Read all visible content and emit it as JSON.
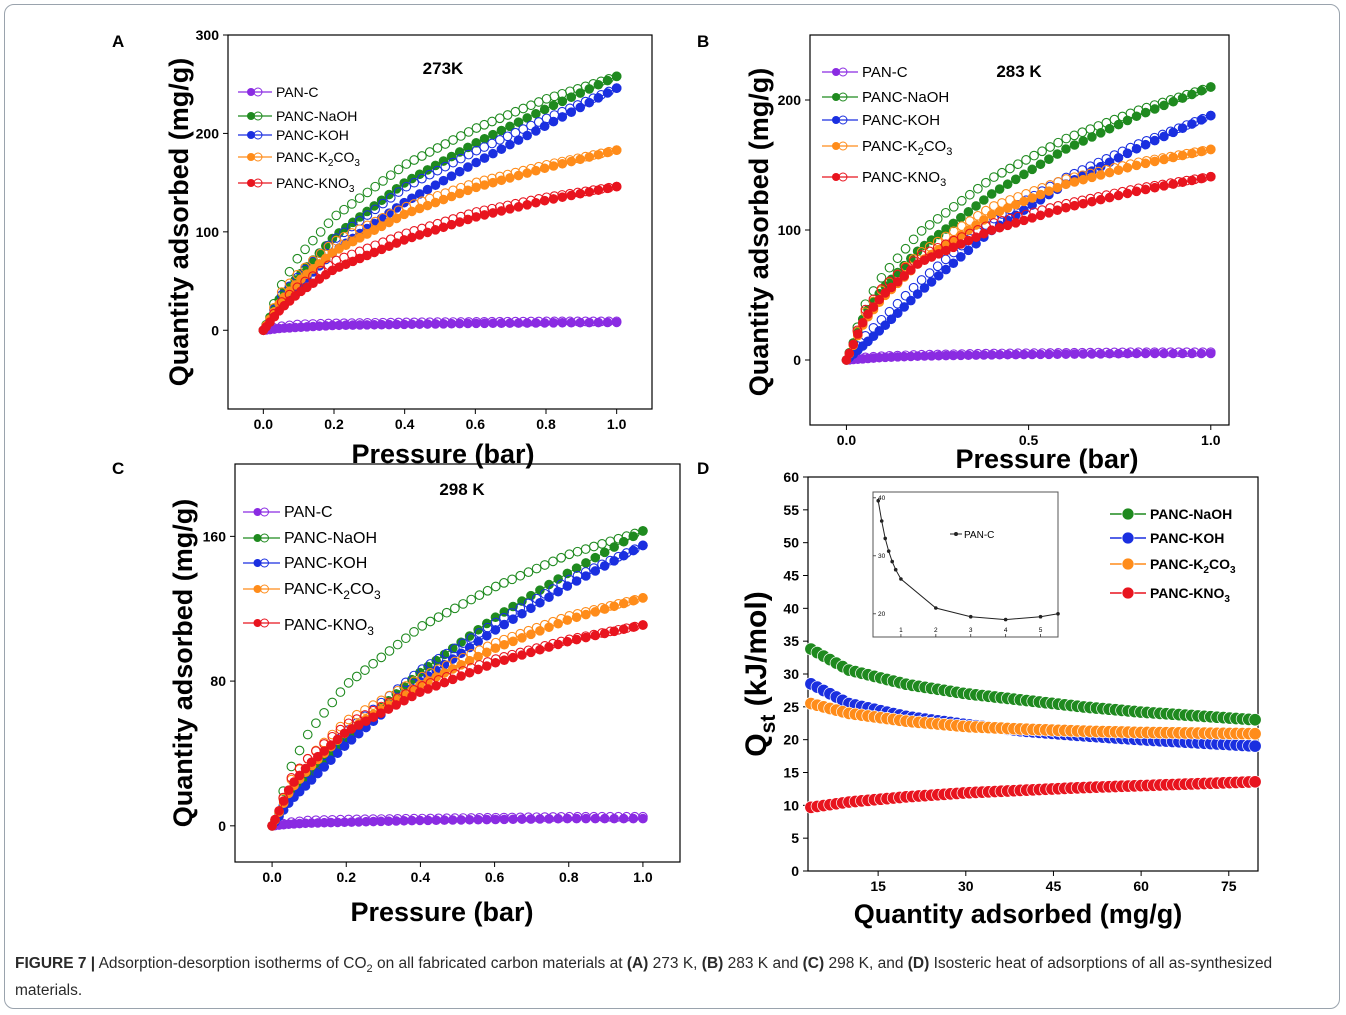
{
  "panels": [
    {
      "letter": "A",
      "temperature": "273K",
      "xlabel": "Pressure (bar)",
      "ylabel": "Quantity adsorbed (mg/g)"
    },
    {
      "letter": "B",
      "temperature": "283 K",
      "xlabel": "Pressure (bar)",
      "ylabel": "Quantity adsorbed (mg/g)"
    },
    {
      "letter": "C",
      "temperature": "298 K",
      "xlabel": "Pressure (bar)",
      "ylabel": "Quantity adsorbed (mg/g)"
    },
    {
      "letter": "D",
      "temperature": "",
      "xlabel": "Quantity adsorbed (mg/g)",
      "ylabel_main": "Q",
      "ylabel_sub": "st",
      "ylabel_rest": " (kJ/mol)"
    }
  ],
  "legend": {
    "pan_c": "PAN-C",
    "naoh": "PANC-NaOH",
    "koh": "PANC-KOH",
    "k2co3_a": "PANC-K",
    "k2co3_b": "2",
    "k2co3_c": "CO",
    "k2co3_d": "3",
    "kno3_a": "PANC-KNO",
    "kno3_b": "3"
  },
  "inset_legend": "PAN-C",
  "colors": {
    "pan_c": "#8a2be2",
    "naoh": "#1f8a1f",
    "koh": "#1a2fe0",
    "k2co3": "#ff8c1a",
    "kno3": "#e8141e",
    "inset": "#222222"
  },
  "caption": {
    "fig": "FIGURE 7 |",
    "t1": " Adsorption-desorption isotherms of CO",
    "sub2": "2",
    "t2": " on all fabricated carbon materials at ",
    "a": "(A)",
    "t3": " 273 K, ",
    "b": "(B)",
    "t4": " 283 K and ",
    "c": "(C)",
    "t5": " 298 K, and ",
    "d": "(D)",
    "t6": " Isosteric heat of adsorptions of all as-synthesized materials."
  },
  "chart_data": [
    {
      "type": "scatter",
      "panel": "A",
      "title": "273K",
      "xlabel": "Pressure (bar)",
      "ylabel": "Quantity adsorbed (mg/g)",
      "xlim": [
        -0.1,
        1.1
      ],
      "ylim": [
        -80,
        300
      ],
      "xticks": [
        0.0,
        0.2,
        0.4,
        0.6,
        0.8,
        1.0
      ],
      "yticks": [
        0,
        100,
        200,
        300
      ],
      "series": [
        {
          "name": "PAN-C",
          "x": [
            0,
            0.05,
            0.1,
            0.2,
            0.4,
            0.6,
            0.8,
            1.0
          ],
          "y": [
            0,
            2,
            3,
            5,
            6,
            7,
            7.5,
            8
          ],
          "desorption_y": [
            0,
            4,
            6,
            7,
            8,
            8.5,
            9,
            9
          ]
        },
        {
          "name": "PANC-NaOH",
          "x": [
            0,
            0.05,
            0.1,
            0.2,
            0.4,
            0.6,
            0.8,
            1.0
          ],
          "y": [
            0,
            35,
            55,
            95,
            150,
            190,
            225,
            258
          ],
          "desorption_y": [
            0,
            45,
            75,
            115,
            168,
            205,
            235,
            258
          ]
        },
        {
          "name": "PANC-KOH",
          "x": [
            0,
            0.05,
            0.1,
            0.2,
            0.4,
            0.6,
            0.8,
            1.0
          ],
          "y": [
            0,
            28,
            45,
            80,
            130,
            170,
            208,
            246
          ],
          "desorption_y": [
            0,
            35,
            55,
            92,
            145,
            182,
            215,
            246
          ]
        },
        {
          "name": "PANC-K2CO3",
          "x": [
            0,
            0.05,
            0.1,
            0.2,
            0.4,
            0.6,
            0.8,
            1.0
          ],
          "y": [
            0,
            30,
            50,
            80,
            118,
            145,
            165,
            183
          ],
          "desorption_y": [
            0,
            38,
            58,
            90,
            125,
            150,
            168,
            183
          ]
        },
        {
          "name": "PANC-KNO3",
          "x": [
            0,
            0.05,
            0.1,
            0.2,
            0.4,
            0.6,
            0.8,
            1.0
          ],
          "y": [
            0,
            22,
            38,
            62,
            92,
            115,
            132,
            146
          ],
          "desorption_y": [
            0,
            28,
            45,
            70,
            98,
            120,
            135,
            146
          ]
        }
      ]
    },
    {
      "type": "scatter",
      "panel": "B",
      "title": "283 K",
      "xlabel": "Pressure (bar)",
      "ylabel": "Quantity adsorbed (mg/g)",
      "xlim": [
        -0.1,
        1.05
      ],
      "ylim": [
        -50,
        250
      ],
      "xticks": [
        0.0,
        0.5,
        1.0
      ],
      "yticks": [
        0,
        100,
        200
      ],
      "series": [
        {
          "name": "PAN-C",
          "x": [
            0,
            0.05,
            0.1,
            0.2,
            0.4,
            0.6,
            0.8,
            1.0
          ],
          "y": [
            0,
            1,
            2,
            3,
            4,
            4.5,
            5,
            5
          ],
          "desorption_y": [
            0,
            2,
            3,
            4,
            5,
            5.5,
            6,
            6
          ]
        },
        {
          "name": "PANC-NaOH",
          "x": [
            0,
            0.05,
            0.1,
            0.2,
            0.4,
            0.6,
            0.8,
            1.0
          ],
          "y": [
            0,
            35,
            55,
            85,
            128,
            162,
            188,
            210
          ],
          "desorption_y": [
            0,
            42,
            65,
            98,
            140,
            170,
            192,
            210
          ]
        },
        {
          "name": "PANC-KOH",
          "x": [
            0,
            0.05,
            0.1,
            0.2,
            0.4,
            0.6,
            0.8,
            1.0
          ],
          "y": [
            0,
            12,
            25,
            52,
            100,
            135,
            163,
            188
          ],
          "desorption_y": [
            0,
            18,
            32,
            60,
            108,
            140,
            166,
            188
          ]
        },
        {
          "name": "PANC-K2CO3",
          "x": [
            0,
            0.05,
            0.1,
            0.2,
            0.4,
            0.6,
            0.8,
            1.0
          ],
          "y": [
            0,
            30,
            48,
            75,
            112,
            135,
            150,
            162
          ],
          "desorption_y": [
            0,
            36,
            55,
            82,
            118,
            139,
            152,
            162
          ]
        },
        {
          "name": "PANC-KNO3",
          "x": [
            0,
            0.05,
            0.1,
            0.2,
            0.4,
            0.6,
            0.8,
            1.0
          ],
          "y": [
            0,
            32,
            50,
            75,
            100,
            117,
            130,
            141
          ],
          "desorption_y": [
            0,
            38,
            56,
            80,
            105,
            120,
            132,
            141
          ]
        }
      ]
    },
    {
      "type": "scatter",
      "panel": "C",
      "title": "298 K",
      "xlabel": "Pressure (bar)",
      "ylabel": "Quantity adsorbed (mg/g)",
      "xlim": [
        -0.1,
        1.1
      ],
      "ylim": [
        -20,
        200
      ],
      "xticks": [
        0.0,
        0.2,
        0.4,
        0.6,
        0.8,
        1.0
      ],
      "yticks": [
        0,
        80,
        160
      ],
      "series": [
        {
          "name": "PAN-C",
          "x": [
            0,
            0.05,
            0.1,
            0.2,
            0.4,
            0.6,
            0.8,
            1.0
          ],
          "y": [
            0,
            1,
            1.5,
            2,
            3,
            3.5,
            4,
            4
          ],
          "desorption_y": [
            0,
            2,
            3,
            3.5,
            4,
            4.5,
            5,
            5
          ]
        },
        {
          "name": "PANC-NaOH",
          "x": [
            0,
            0.05,
            0.1,
            0.2,
            0.4,
            0.6,
            0.8,
            1.0
          ],
          "y": [
            0,
            18,
            28,
            48,
            85,
            115,
            140,
            163
          ],
          "desorption_y": [
            0,
            32,
            52,
            78,
            110,
            132,
            150,
            163
          ]
        },
        {
          "name": "PANC-KOH",
          "x": [
            0,
            0.05,
            0.1,
            0.2,
            0.4,
            0.6,
            0.8,
            1.0
          ],
          "y": [
            0,
            14,
            24,
            45,
            80,
            108,
            133,
            155
          ],
          "desorption_y": [
            0,
            18,
            30,
            52,
            86,
            112,
            136,
            155
          ]
        },
        {
          "name": "PANC-K2CO3",
          "x": [
            0,
            0.05,
            0.1,
            0.2,
            0.4,
            0.6,
            0.8,
            1.0
          ],
          "y": [
            0,
            20,
            32,
            52,
            78,
            98,
            114,
            126
          ],
          "desorption_y": [
            0,
            25,
            38,
            58,
            82,
            101,
            116,
            126
          ]
        },
        {
          "name": "PANC-KNO3",
          "x": [
            0,
            0.05,
            0.1,
            0.2,
            0.4,
            0.6,
            0.8,
            1.0
          ],
          "y": [
            0,
            22,
            34,
            52,
            74,
            90,
            102,
            111
          ],
          "desorption_y": [
            0,
            26,
            38,
            56,
            77,
            92,
            103,
            111
          ]
        }
      ]
    },
    {
      "type": "scatter",
      "panel": "D",
      "xlabel": "Quantity adsorbed (mg/g)",
      "ylabel": "Qst (kJ/mol)",
      "xlim": [
        3,
        80
      ],
      "ylim": [
        0,
        60
      ],
      "xticks": [
        15,
        30,
        45,
        60,
        75
      ],
      "yticks": [
        0,
        5,
        10,
        15,
        20,
        25,
        30,
        35,
        40,
        45,
        50,
        55,
        60
      ],
      "series": [
        {
          "name": "PANC-NaOH",
          "x": [
            3.5,
            10,
            20,
            30,
            40,
            50,
            60,
            70,
            80
          ],
          "y": [
            33.8,
            30.6,
            28.4,
            27.0,
            26.0,
            25.0,
            24.2,
            23.6,
            23.0
          ]
        },
        {
          "name": "PANC-KOH",
          "x": [
            3.5,
            10,
            20,
            30,
            40,
            50,
            60,
            70,
            80
          ],
          "y": [
            28.5,
            25.5,
            23.5,
            22.3,
            21.3,
            20.6,
            20.0,
            19.5,
            19.0
          ]
        },
        {
          "name": "PANC-K2CO3",
          "x": [
            3.5,
            10,
            20,
            30,
            40,
            50,
            60,
            70,
            80
          ],
          "y": [
            25.5,
            24.0,
            22.8,
            22.0,
            21.6,
            21.3,
            21.1,
            21.0,
            20.9
          ]
        },
        {
          "name": "PANC-KNO3",
          "x": [
            3.5,
            10,
            20,
            30,
            40,
            50,
            60,
            70,
            80
          ],
          "y": [
            9.7,
            10.5,
            11.3,
            11.9,
            12.3,
            12.7,
            13.0,
            13.3,
            13.6
          ]
        }
      ],
      "inset": {
        "series_name": "PAN-C",
        "xlim": [
          0.2,
          5.5
        ],
        "ylim": [
          16,
          41
        ],
        "xticks": [
          1,
          2,
          3,
          4,
          5
        ],
        "yticks": [
          20,
          30,
          40
        ],
        "x": [
          0.35,
          0.45,
          0.55,
          0.65,
          0.75,
          0.85,
          1.0,
          2.0,
          3.0,
          4.0,
          5.0,
          5.5
        ],
        "y": [
          39.5,
          36,
          33,
          30.8,
          29,
          27.6,
          26,
          21,
          19.5,
          19,
          19.5,
          20
        ]
      }
    }
  ]
}
